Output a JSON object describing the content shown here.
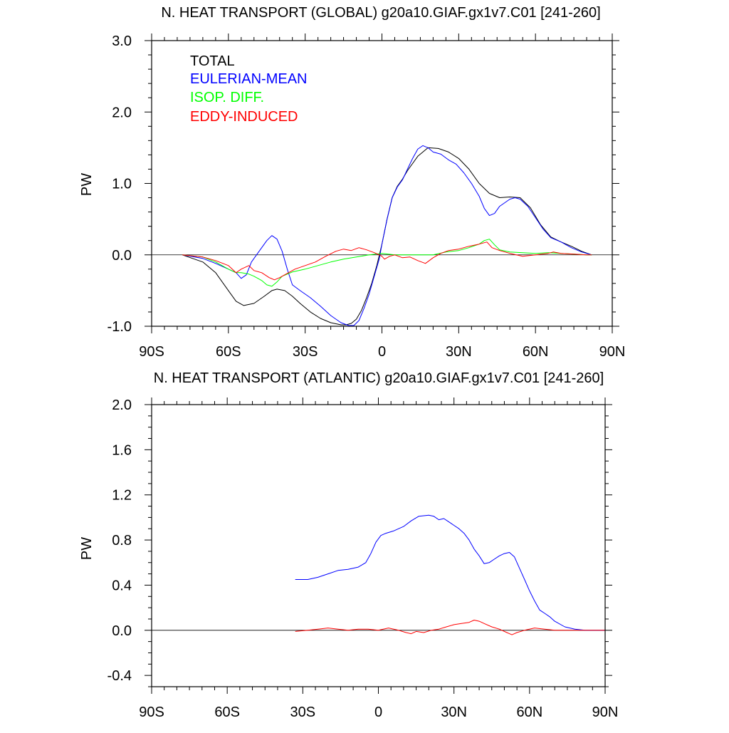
{
  "colors": {
    "total": "#000000",
    "eulerian": "#0000ff",
    "isop": "#00ff00",
    "eddy": "#ff0000",
    "axis": "#000000"
  },
  "chart_data": [
    {
      "type": "line",
      "title": "N. HEAT TRANSPORT (GLOBAL) g20a10.GIAF.gx1v7.C01 [241-260]",
      "xlabel": "",
      "ylabel": "PW",
      "xlim": [
        -90,
        90
      ],
      "ylim": [
        -1.0,
        3.0
      ],
      "x_ticks": [
        -90,
        -60,
        -30,
        0,
        30,
        60,
        90
      ],
      "x_tick_labels": [
        "90S",
        "60S",
        "30S",
        "0",
        "30N",
        "60N",
        "90N"
      ],
      "y_ticks": [
        -1.0,
        0.0,
        1.0,
        2.0,
        3.0
      ],
      "y_tick_labels": [
        "-1.0",
        "0.0",
        "1.0",
        "2.0",
        "3.0"
      ],
      "legend": [
        "TOTAL",
        "EULERIAN-MEAN",
        "ISOP. DIFF.",
        "EDDY-INDUCED"
      ],
      "legend_location": "top-left",
      "series": [
        {
          "name": "TOTAL",
          "color": "#000000",
          "x": [
            -78,
            -70,
            -65,
            -60,
            -57,
            -54,
            -50,
            -46,
            -43,
            -41,
            -38,
            -35,
            -32,
            -28,
            -24,
            -20,
            -16,
            -14,
            -12,
            -10,
            -8,
            -6,
            -4,
            -2,
            0,
            2,
            4,
            6,
            8,
            10,
            14,
            18,
            22,
            26,
            30,
            34,
            38,
            42,
            46,
            50,
            54,
            58,
            62,
            66,
            70,
            74,
            78,
            82
          ],
          "y": [
            0.0,
            -0.1,
            -0.25,
            -0.5,
            -0.65,
            -0.71,
            -0.68,
            -0.58,
            -0.5,
            -0.48,
            -0.5,
            -0.58,
            -0.68,
            -0.8,
            -0.89,
            -0.95,
            -0.98,
            -0.98,
            -0.96,
            -0.9,
            -0.78,
            -0.6,
            -0.4,
            -0.15,
            0.15,
            0.5,
            0.8,
            0.96,
            1.06,
            1.18,
            1.38,
            1.5,
            1.49,
            1.44,
            1.35,
            1.2,
            1.0,
            0.86,
            0.8,
            0.81,
            0.8,
            0.66,
            0.42,
            0.25,
            0.18,
            0.12,
            0.05,
            0.0
          ]
        },
        {
          "name": "EULERIAN-MEAN",
          "color": "#0000ff",
          "x": [
            -78,
            -70,
            -65,
            -60,
            -57,
            -55,
            -53,
            -51,
            -48,
            -45,
            -43,
            -41,
            -39,
            -37,
            -35,
            -32,
            -28,
            -24,
            -20,
            -16,
            -13,
            -11,
            -9,
            -7,
            -5,
            -3,
            -1,
            0,
            2,
            4,
            6,
            8,
            10,
            12,
            14,
            16,
            18,
            20,
            23,
            26,
            29,
            32,
            35,
            38,
            40,
            42,
            44,
            46,
            48,
            50,
            52,
            54,
            57,
            60,
            63,
            66,
            70,
            74,
            78,
            82
          ],
          "y": [
            0.0,
            -0.05,
            -0.12,
            -0.2,
            -0.25,
            -0.33,
            -0.28,
            -0.1,
            0.05,
            0.2,
            0.27,
            0.22,
            0.05,
            -0.2,
            -0.42,
            -0.5,
            -0.6,
            -0.72,
            -0.85,
            -0.95,
            -0.99,
            -0.99,
            -0.92,
            -0.75,
            -0.55,
            -0.3,
            -0.05,
            0.15,
            0.5,
            0.8,
            0.95,
            1.05,
            1.2,
            1.35,
            1.48,
            1.53,
            1.5,
            1.44,
            1.41,
            1.33,
            1.27,
            1.15,
            1.0,
            0.82,
            0.65,
            0.55,
            0.58,
            0.68,
            0.73,
            0.78,
            0.8,
            0.78,
            0.68,
            0.52,
            0.36,
            0.24,
            0.18,
            0.1,
            0.04,
            0.0
          ]
        },
        {
          "name": "ISOP. DIFF.",
          "color": "#00ff00",
          "x": [
            -78,
            -70,
            -65,
            -60,
            -57,
            -55,
            -52,
            -50,
            -47,
            -45,
            -43,
            -41,
            -39,
            -35,
            -30,
            -25,
            -20,
            -15,
            -10,
            -5,
            0,
            5,
            10,
            15,
            20,
            25,
            30,
            34,
            38,
            40,
            42,
            44,
            46,
            50,
            55,
            60,
            65,
            70,
            75,
            80,
            82
          ],
          "y": [
            0.0,
            -0.03,
            -0.1,
            -0.2,
            -0.25,
            -0.25,
            -0.27,
            -0.3,
            -0.36,
            -0.42,
            -0.44,
            -0.38,
            -0.3,
            -0.24,
            -0.2,
            -0.15,
            -0.1,
            -0.06,
            -0.03,
            0.0,
            0.02,
            0.0,
            0.0,
            0.0,
            0.0,
            0.04,
            0.06,
            0.1,
            0.15,
            0.2,
            0.22,
            0.14,
            0.07,
            0.04,
            0.03,
            0.02,
            0.03,
            0.02,
            0.01,
            0.0,
            0.0
          ]
        },
        {
          "name": "EDDY-INDUCED",
          "color": "#ff0000",
          "x": [
            -78,
            -70,
            -65,
            -60,
            -57,
            -55,
            -52,
            -50,
            -47,
            -44,
            -42,
            -40,
            -37,
            -34,
            -30,
            -26,
            -22,
            -18,
            -15,
            -12,
            -9,
            -6,
            -3,
            -1,
            0,
            1,
            3,
            5,
            8,
            11,
            14,
            17,
            20,
            23,
            26,
            30,
            34,
            38,
            41,
            43,
            46,
            50,
            55,
            60,
            65,
            67,
            70,
            75,
            80,
            82
          ],
          "y": [
            0.0,
            -0.03,
            -0.08,
            -0.15,
            -0.25,
            -0.2,
            -0.15,
            -0.22,
            -0.25,
            -0.32,
            -0.35,
            -0.32,
            -0.26,
            -0.2,
            -0.15,
            -0.1,
            -0.02,
            0.05,
            0.08,
            0.06,
            0.1,
            0.07,
            0.03,
            0.0,
            -0.02,
            -0.06,
            -0.02,
            0.0,
            -0.04,
            -0.03,
            -0.08,
            -0.12,
            -0.04,
            0.02,
            0.06,
            0.08,
            0.12,
            0.15,
            0.18,
            0.1,
            0.06,
            0.02,
            -0.02,
            0.0,
            0.02,
            0.04,
            0.02,
            0.01,
            0.0,
            0.0
          ]
        }
      ]
    },
    {
      "type": "line",
      "title": "N. HEAT TRANSPORT (ATLANTIC) g20a10.GIAF.gx1v7.C01 [241-260]",
      "xlabel": "",
      "ylabel": "PW",
      "xlim": [
        -90,
        90
      ],
      "ylim": [
        -0.5,
        2.0
      ],
      "x_ticks": [
        -90,
        -60,
        -30,
        0,
        30,
        60,
        90
      ],
      "x_tick_labels": [
        "90S",
        "60S",
        "30S",
        "0",
        "30N",
        "60N",
        "90N"
      ],
      "y_ticks": [
        -0.4,
        0.0,
        0.4,
        0.8,
        1.2,
        1.6,
        2.0
      ],
      "y_tick_labels": [
        "-0.4",
        "0.0",
        "0.4",
        "0.8",
        "1.2",
        "1.6",
        "2.0"
      ],
      "series": [
        {
          "name": "EULERIAN-MEAN",
          "color": "#0000ff",
          "x": [
            -33,
            -28,
            -24,
            -20,
            -16,
            -12,
            -8,
            -5,
            -3,
            -1,
            1,
            3,
            6,
            10,
            13,
            16,
            20,
            22,
            24,
            26,
            28,
            30,
            32,
            34,
            36,
            38,
            40,
            42,
            44,
            46,
            48,
            50,
            52,
            54,
            56,
            58,
            60,
            62,
            64,
            66,
            68,
            70,
            74,
            78,
            82,
            86,
            90
          ],
          "y": [
            0.45,
            0.45,
            0.47,
            0.5,
            0.53,
            0.54,
            0.56,
            0.6,
            0.68,
            0.78,
            0.84,
            0.86,
            0.88,
            0.92,
            0.97,
            1.01,
            1.02,
            1.01,
            0.98,
            0.99,
            0.96,
            0.93,
            0.9,
            0.86,
            0.8,
            0.72,
            0.66,
            0.59,
            0.6,
            0.63,
            0.66,
            0.68,
            0.69,
            0.65,
            0.55,
            0.45,
            0.35,
            0.26,
            0.18,
            0.15,
            0.12,
            0.08,
            0.03,
            0.01,
            0.0,
            0.0,
            0.0
          ]
        },
        {
          "name": "EDDY-INDUCED",
          "color": "#ff0000",
          "x": [
            -33,
            -28,
            -24,
            -20,
            -16,
            -12,
            -8,
            -4,
            0,
            4,
            8,
            11,
            13,
            15,
            18,
            21,
            24,
            27,
            30,
            33,
            36,
            38,
            40,
            42,
            45,
            48,
            51,
            53,
            55,
            58,
            62,
            66,
            70,
            75,
            80,
            86,
            90
          ],
          "y": [
            -0.01,
            0.0,
            0.01,
            0.02,
            0.01,
            0.0,
            0.01,
            0.01,
            0.0,
            0.02,
            0.0,
            -0.02,
            -0.03,
            -0.01,
            -0.02,
            0.0,
            0.01,
            0.03,
            0.05,
            0.06,
            0.07,
            0.09,
            0.08,
            0.06,
            0.03,
            0.01,
            -0.02,
            -0.04,
            -0.02,
            0.0,
            0.02,
            0.01,
            0.0,
            0.0,
            0.0,
            0.0,
            0.0
          ]
        }
      ]
    }
  ]
}
